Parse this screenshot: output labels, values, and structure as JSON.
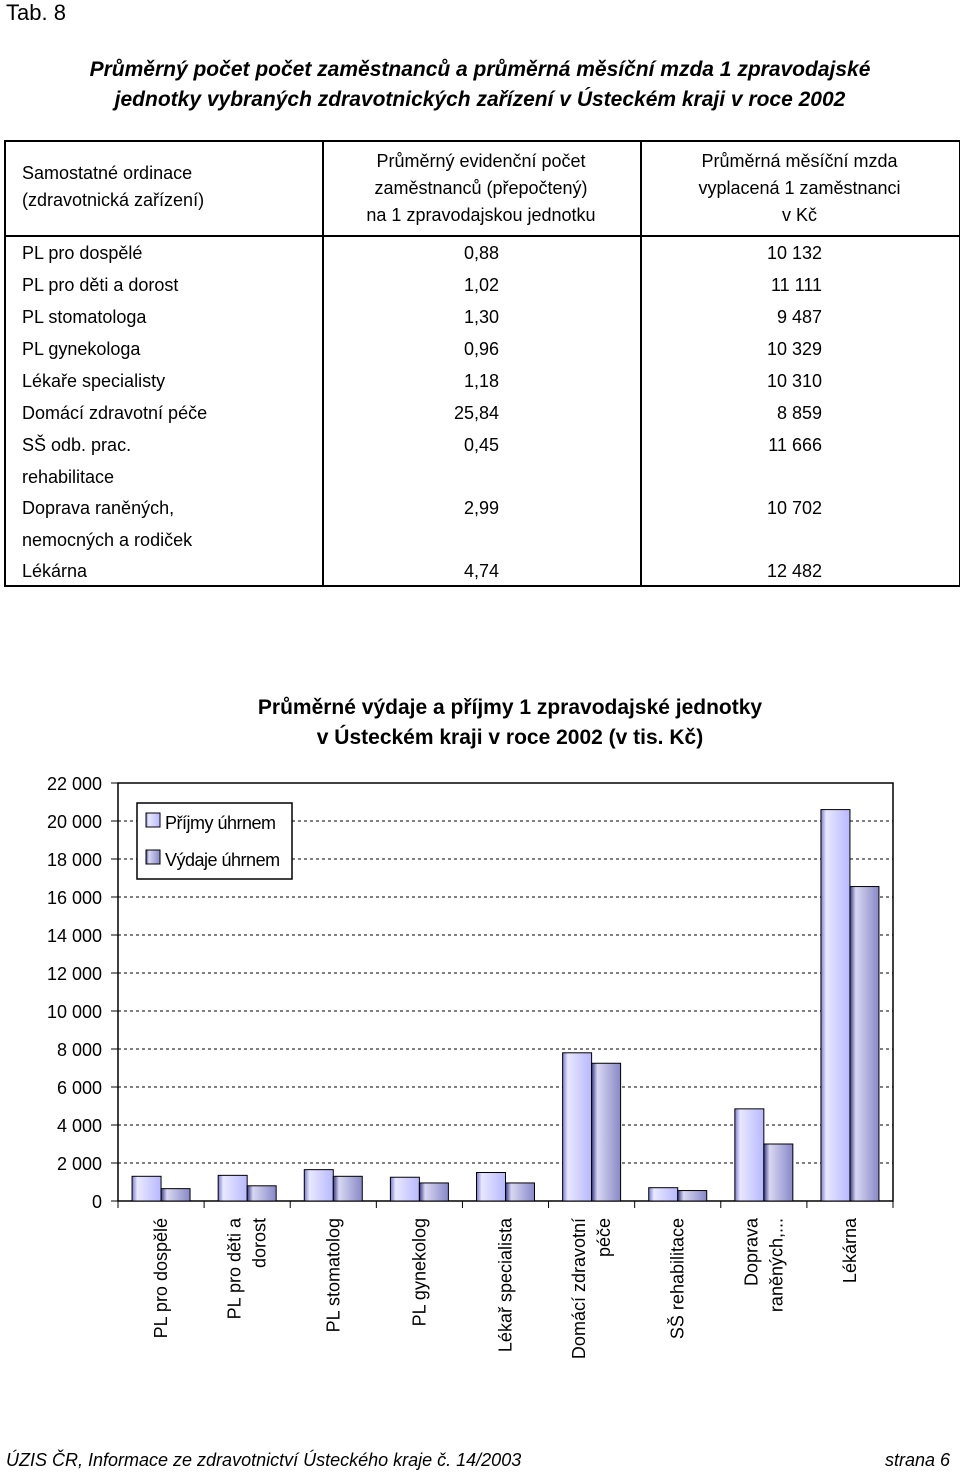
{
  "tab_label": "Tab. 8",
  "title": {
    "line1": "Průměrný počet počet zaměstnanců a průměrná měsíční mzda  1 zpravodajské",
    "line2": "jednotky vybraných zdravotnických zařízení v Ústeckém kraji v roce 2002"
  },
  "table": {
    "headers": {
      "col1": [
        "Samostatné ordinace",
        "(zdravotnická zařízení)"
      ],
      "col2": [
        "Průměrný evidenční počet",
        "zaměstnanců (přepočtený)",
        "na 1 zpravodajskou jednotku"
      ],
      "col3": [
        "Průměrná měsíční mzda",
        "vyplacená 1 zaměstnanci",
        "v Kč"
      ]
    },
    "rows": [
      {
        "name": "PL pro dospělé",
        "name2": "",
        "employees": "0,88",
        "wage": "10 132"
      },
      {
        "name": "PL pro děti a dorost",
        "name2": "",
        "employees": "1,02",
        "wage": "11 111"
      },
      {
        "name": "PL stomatologa",
        "name2": "",
        "employees": "1,30",
        "wage": "9 487"
      },
      {
        "name": "PL gynekologa",
        "name2": "",
        "employees": "0,96",
        "wage": "10 329"
      },
      {
        "name": "Lékaře specialisty",
        "name2": "",
        "employees": "1,18",
        "wage": "10 310"
      },
      {
        "name": "Domácí zdravotní péče",
        "name2": "",
        "employees": "25,84",
        "wage": "8 859"
      },
      {
        "name": "SŠ odb. prac.",
        "name2": "rehabilitace",
        "employees": "0,45",
        "wage": "11 666"
      },
      {
        "name": "Doprava raněných,",
        "name2": "nemocných a rodiček",
        "employees": "2,99",
        "wage": "10 702"
      },
      {
        "name": "Lékárna",
        "name2": "",
        "employees": "4,74",
        "wage": "12 482"
      }
    ]
  },
  "chart_data": {
    "type": "bar",
    "title": [
      "Průměrné výdaje a příjmy 1 zpravodajské jednotky",
      "v Ústeckém kraji v roce 2002 (v tis. Kč)"
    ],
    "categories": [
      [
        "PL pro dospělé"
      ],
      [
        "PL pro děti a",
        "dorost"
      ],
      [
        "PL stomatolog"
      ],
      [
        "PL gynekolog"
      ],
      [
        "Lékař specialista"
      ],
      [
        "Domácí zdravotní",
        "péče"
      ],
      [
        "SŠ rehabilitace"
      ],
      [
        "Doprava",
        "raněných,..."
      ],
      [
        "Lékárna"
      ]
    ],
    "series": [
      {
        "name": "Příjmy úhrnem",
        "values": [
          1300,
          1350,
          1650,
          1250,
          1500,
          7800,
          700,
          4850,
          20600
        ],
        "color": "#c8c8ff"
      },
      {
        "name": "Výdaje úhrnem",
        "values": [
          650,
          800,
          1300,
          950,
          950,
          7250,
          550,
          3000,
          16550
        ],
        "color": "#9a9ad8"
      }
    ],
    "ylim": [
      0,
      22000
    ],
    "ytick_step": 2000,
    "ytick_labels": [
      "0",
      "2 000",
      "4 000",
      "6 000",
      "8 000",
      "10 000",
      "12 000",
      "14 000",
      "16 000",
      "18 000",
      "20 000",
      "22 000"
    ],
    "grid": true,
    "legend_position": "top-left"
  },
  "footer": {
    "left": "ÚZIS ČR, Informace ze zdravotnictví Ústeckého kraje č. 14/2003",
    "right": "strana 6"
  }
}
